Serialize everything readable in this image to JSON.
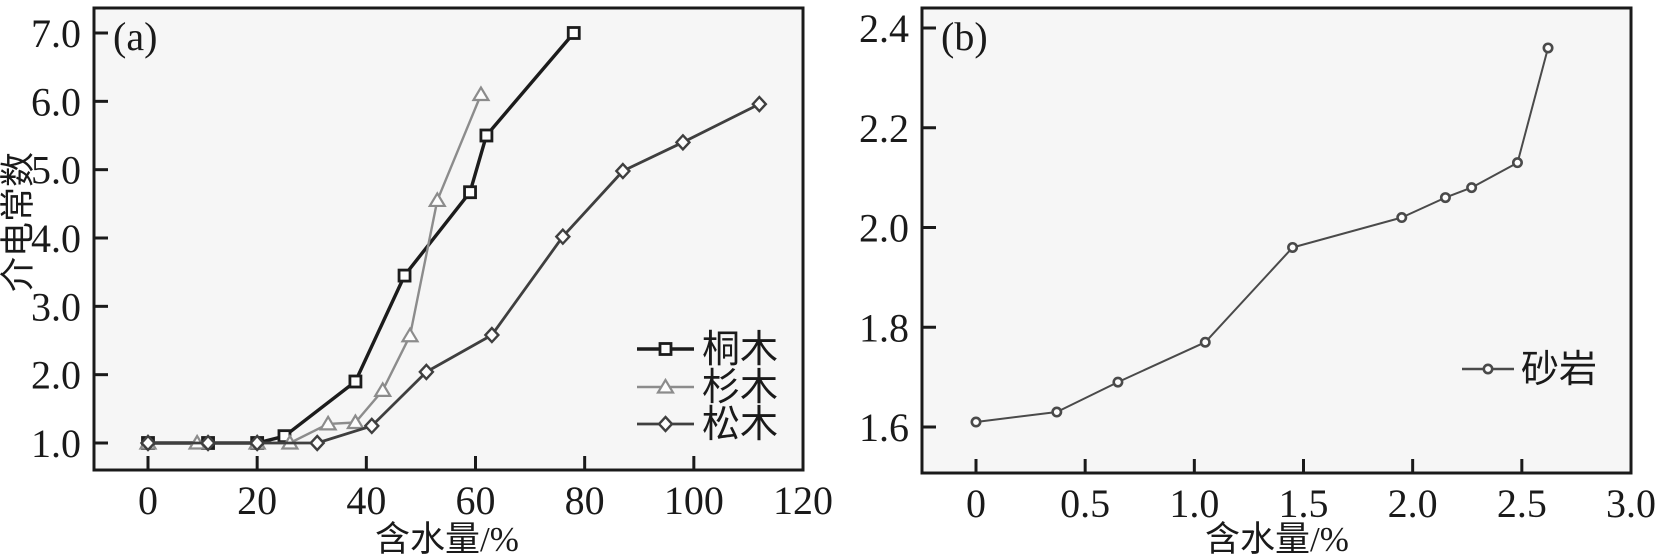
{
  "figure": {
    "background": "#ffffff",
    "panel_background": "#f6f6f6",
    "axis_color": "#1a1a1a",
    "marker_fill": "#fdfdfd"
  },
  "chart_data": [
    {
      "type": "line",
      "panel_label": "(a)",
      "title": "",
      "xlabel": "含水量/%",
      "ylabel": "介电常数",
      "xlim": [
        -9.9,
        120
      ],
      "ylim": [
        0.6,
        7.37
      ],
      "grid": false,
      "legend_position": "inside-right-middle",
      "x_ticks": [
        0,
        20,
        40,
        60,
        80,
        100,
        120
      ],
      "x_tick_labels": [
        "0",
        "20",
        "40",
        "60",
        "80",
        "100",
        "120"
      ],
      "y_ticks": [
        1,
        2,
        3,
        4,
        5,
        6,
        7
      ],
      "y_tick_labels": [
        "1.0",
        "2.0",
        "3.0",
        "4.0",
        "5.0",
        "6.0",
        "7.0"
      ],
      "series": [
        {
          "name": "桐木",
          "marker": "square",
          "color": "#1c1c1c",
          "line_width": 3.4,
          "x": [
            0,
            11,
            20,
            25,
            38,
            47,
            59,
            62,
            78
          ],
          "y": [
            1.0,
            1.0,
            1.0,
            1.1,
            1.9,
            3.45,
            4.67,
            5.5,
            7.0
          ]
        },
        {
          "name": "杉木",
          "marker": "triangle",
          "color": "#8c8c8c",
          "line_width": 2.4,
          "x": [
            0,
            9,
            20,
            26,
            33,
            38,
            43,
            48,
            53,
            61
          ],
          "y": [
            1.0,
            1.0,
            1.0,
            1.0,
            1.28,
            1.3,
            1.77,
            2.57,
            4.55,
            6.1
          ]
        },
        {
          "name": "松木",
          "marker": "diamond",
          "color": "#3f3f3f",
          "line_width": 2.8,
          "x": [
            0,
            11,
            20,
            31,
            41,
            51,
            63,
            76,
            87,
            98,
            112
          ],
          "y": [
            1.0,
            1.0,
            1.0,
            1.0,
            1.25,
            2.04,
            2.58,
            4.02,
            4.98,
            5.4,
            5.96
          ]
        }
      ]
    },
    {
      "type": "line",
      "panel_label": "(b)",
      "title": "",
      "xlabel": "含水量/%",
      "ylabel": "",
      "xlim": [
        -0.25,
        3.0
      ],
      "ylim": [
        1.51,
        2.44
      ],
      "grid": false,
      "legend_position": "inside-right-middle",
      "x_ticks": [
        0,
        0.5,
        1.0,
        1.5,
        2.0,
        2.5,
        3.0
      ],
      "x_tick_labels": [
        "0",
        "0.5",
        "1.0",
        "1.5",
        "2.0",
        "2.5",
        "3.0"
      ],
      "y_ticks": [
        1.6,
        1.8,
        2.0,
        2.2,
        2.4
      ],
      "y_tick_labels": [
        "1.6",
        "1.8",
        "2.0",
        "2.2",
        "2.4"
      ],
      "series": [
        {
          "name": "砂岩",
          "marker": "circle",
          "color": "#4a4a4a",
          "line_width": 2,
          "x": [
            0,
            0.37,
            0.65,
            1.05,
            1.45,
            1.95,
            2.15,
            2.27,
            2.48,
            2.62
          ],
          "y": [
            1.61,
            1.63,
            1.69,
            1.77,
            1.96,
            2.02,
            2.06,
            2.08,
            2.13,
            2.36
          ]
        }
      ]
    }
  ]
}
